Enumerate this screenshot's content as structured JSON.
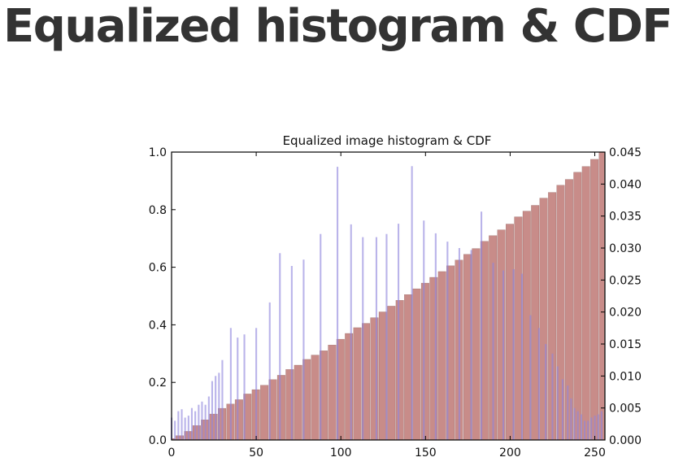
{
  "slide": {
    "title": "Equalized histogram & CDF"
  },
  "chart_data": {
    "type": "bar",
    "title": "Equalized image histogram & CDF",
    "xlabel": "",
    "ylabel": "",
    "xlim": [
      0,
      256
    ],
    "ylim_left": [
      0,
      1.0
    ],
    "ylim_right": [
      0,
      0.045
    ],
    "x_ticks": [
      0,
      50,
      100,
      150,
      200,
      250
    ],
    "y_left_ticks": [
      "0.0",
      "0.2",
      "0.4",
      "0.6",
      "0.8",
      "1.0"
    ],
    "y_right_ticks": [
      "0.000",
      "0.005",
      "0.010",
      "0.015",
      "0.020",
      "0.025",
      "0.030",
      "0.035",
      "0.040",
      "0.045"
    ],
    "grid": false,
    "colors": {
      "histogram": "#8f86dd",
      "histogram_overlap": "#4c3a70",
      "cdf": "#b86b68"
    },
    "series": [
      {
        "type": "bar",
        "axis": "right",
        "bin_width": 1,
        "x": [
          0,
          2,
          4,
          6,
          8,
          10,
          12,
          14,
          16,
          18,
          20,
          22,
          24,
          26,
          28,
          30,
          35,
          39,
          43,
          50,
          58,
          64,
          71,
          78,
          88,
          98,
          106,
          113,
          121,
          127,
          134,
          142,
          149,
          156,
          163,
          170,
          177,
          183,
          190,
          196,
          202,
          207,
          212,
          217,
          221,
          225,
          228,
          231,
          234,
          236,
          238,
          240,
          242,
          244,
          246,
          248,
          250,
          252,
          254
        ],
        "values": [
          0.0035,
          0.003,
          0.0045,
          0.0048,
          0.0035,
          0.0038,
          0.005,
          0.0045,
          0.0055,
          0.006,
          0.0055,
          0.0068,
          0.0092,
          0.01,
          0.0105,
          0.0125,
          0.0175,
          0.016,
          0.0165,
          0.0175,
          0.0215,
          0.0292,
          0.0272,
          0.0282,
          0.0322,
          0.0427,
          0.0337,
          0.0317,
          0.0317,
          0.0322,
          0.0338,
          0.0428,
          0.0343,
          0.0323,
          0.031,
          0.03,
          0.0297,
          0.0357,
          0.0277,
          0.0265,
          0.0267,
          0.026,
          0.0195,
          0.0175,
          0.015,
          0.0135,
          0.0115,
          0.0095,
          0.0085,
          0.0065,
          0.005,
          0.0045,
          0.004,
          0.003,
          0.003,
          0.0035,
          0.0038,
          0.004,
          0.0045
        ]
      },
      {
        "type": "cdf",
        "axis": "left",
        "x": [
          0,
          5,
          10,
          15,
          20,
          25,
          30,
          35,
          40,
          45,
          50,
          55,
          60,
          65,
          70,
          75,
          80,
          85,
          90,
          95,
          100,
          105,
          110,
          115,
          120,
          125,
          130,
          135,
          140,
          145,
          150,
          155,
          160,
          165,
          170,
          175,
          180,
          185,
          190,
          195,
          200,
          205,
          210,
          215,
          220,
          225,
          230,
          235,
          240,
          245,
          250,
          255
        ],
        "values": [
          0.005,
          0.015,
          0.03,
          0.05,
          0.07,
          0.09,
          0.11,
          0.125,
          0.14,
          0.16,
          0.175,
          0.19,
          0.21,
          0.225,
          0.245,
          0.26,
          0.28,
          0.295,
          0.31,
          0.33,
          0.35,
          0.37,
          0.39,
          0.405,
          0.425,
          0.445,
          0.465,
          0.485,
          0.505,
          0.525,
          0.545,
          0.565,
          0.585,
          0.605,
          0.625,
          0.645,
          0.665,
          0.69,
          0.71,
          0.73,
          0.75,
          0.775,
          0.795,
          0.815,
          0.84,
          0.86,
          0.885,
          0.905,
          0.93,
          0.95,
          0.975,
          1.0
        ]
      }
    ]
  }
}
